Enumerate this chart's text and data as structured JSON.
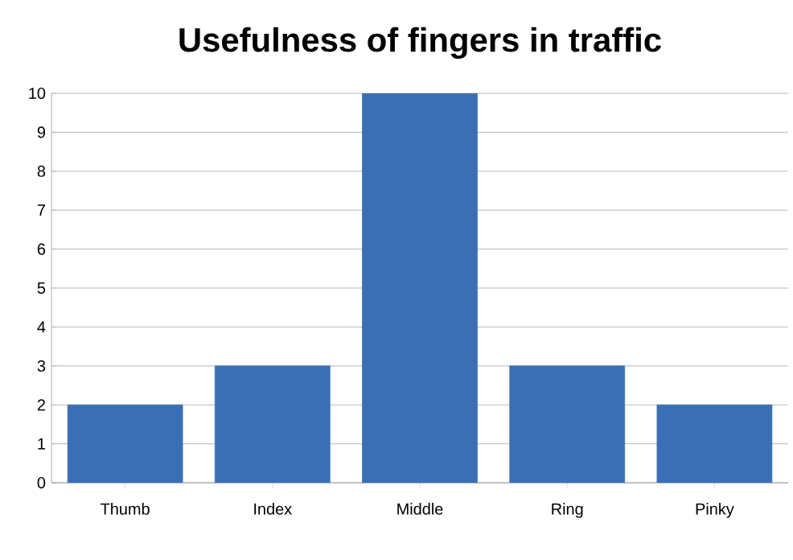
{
  "chart_data": {
    "type": "bar",
    "title": "Usefulness of fingers in traffic",
    "categories": [
      "Thumb",
      "Index",
      "Middle",
      "Ring",
      "Pinky"
    ],
    "values": [
      2,
      3,
      10,
      3,
      2
    ],
    "color": "#3a6fb5",
    "ylim": [
      0,
      10
    ],
    "yticks": [
      0,
      1,
      2,
      3,
      4,
      5,
      6,
      7,
      8,
      9,
      10
    ],
    "grid": "y"
  }
}
